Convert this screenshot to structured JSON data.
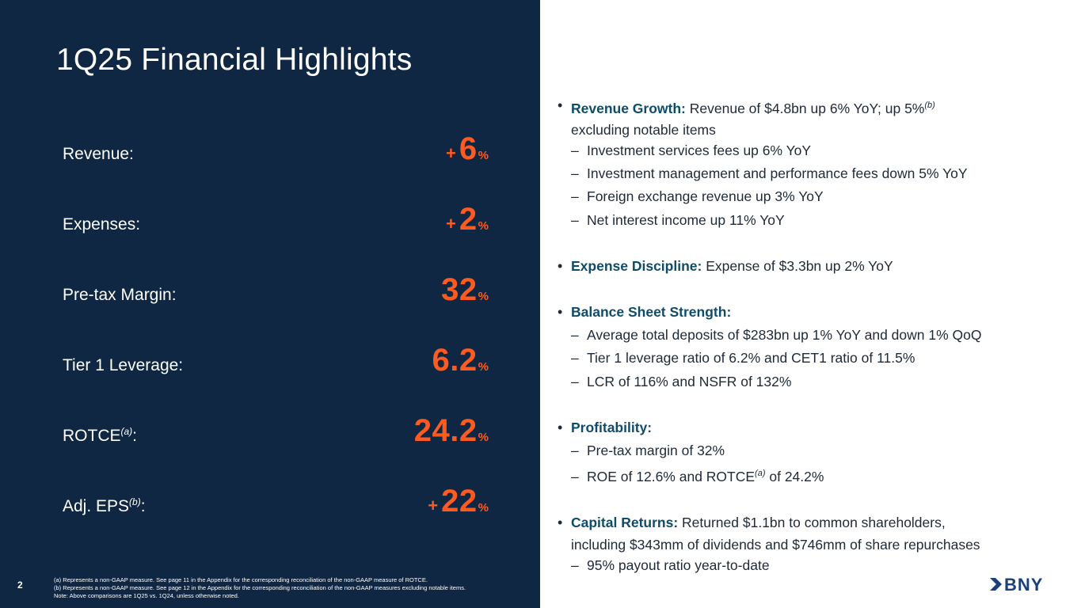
{
  "slide": {
    "title": "1Q25 Financial Highlights",
    "page_number": "2"
  },
  "metrics": [
    {
      "label": "Revenue:",
      "label_sup": "",
      "label_suffix": "",
      "sign": "+",
      "value": "6",
      "unit": "%"
    },
    {
      "label": "Expenses:",
      "label_sup": "",
      "label_suffix": "",
      "sign": "+",
      "value": "2",
      "unit": "%"
    },
    {
      "label": "Pre-tax Margin:",
      "label_sup": "",
      "label_suffix": "",
      "sign": "",
      "value": "32",
      "unit": "%"
    },
    {
      "label": "Tier 1 Leverage:",
      "label_sup": "",
      "label_suffix": "",
      "sign": "",
      "value": "6.2",
      "unit": "%"
    },
    {
      "label": "ROTCE",
      "label_sup": "(a)",
      "label_suffix": ":",
      "sign": "",
      "value": "24.2",
      "unit": "%"
    },
    {
      "label": "Adj. EPS",
      "label_sup": "(b)",
      "label_suffix": ":",
      "sign": "+",
      "value": "22",
      "unit": "%"
    }
  ],
  "highlights": {
    "revenue": {
      "head": "Revenue Growth:",
      "text": " Revenue of $4.8bn up 6% YoY; up 5%",
      "sup": "(b)",
      "cont": "excluding notable items",
      "subs": [
        "Investment services fees up 6% YoY",
        "Investment management and performance fees down 5% YoY",
        "Foreign exchange revenue up 3% YoY",
        "Net interest income up 11% YoY"
      ]
    },
    "expense": {
      "head": "Expense Discipline:",
      "text": " Expense of $3.3bn up 2% YoY"
    },
    "balance": {
      "head": "Balance Sheet Strength:",
      "subs": [
        "Average total deposits of $283bn up 1% YoY and down 1% QoQ",
        "Tier 1 leverage ratio of 6.2% and CET1 ratio of 11.5%",
        "LCR of 116% and NSFR of 132%"
      ]
    },
    "profitability": {
      "head": "Profitability:",
      "sub1": "Pre-tax margin of 32%",
      "sub2_pre": "ROE of 12.6% and ROTCE",
      "sub2_sup": "(a)",
      "sub2_post": " of 24.2%"
    },
    "capital": {
      "head": "Capital Returns:",
      "text": " Returned $1.1bn to common shareholders,",
      "cont": "including $343mm of dividends and $746mm of share repurchases",
      "sub": "95% payout ratio year-to-date"
    }
  },
  "bullet_symbol": "•",
  "dash_symbol": "–",
  "footnotes": [
    "(a) Represents a non-GAAP measure. See page 11 in the Appendix for the corresponding reconciliation of the non-GAAP measure of ROTCE.",
    "(b) Represents a non-GAAP measure. See page 12 in the Appendix for the corresponding reconciliation of the non-GAAP measures excluding notable items.",
    "Note: Above comparisons are 1Q25 vs. 1Q24, unless otherwise noted."
  ],
  "logo": {
    "text": "BNY",
    "icon": "arrow-chevron-icon"
  },
  "colors": {
    "panel": "#0f2742",
    "accent": "#ff5a1f",
    "heading": "#0f4c6a",
    "logo": "#1b3f79"
  }
}
